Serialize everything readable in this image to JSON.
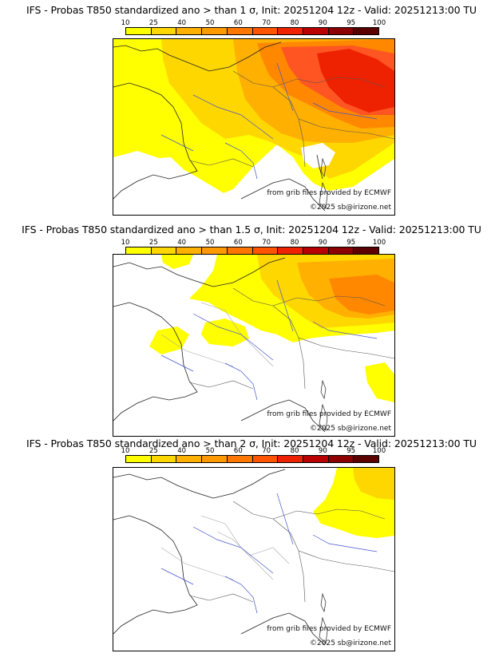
{
  "panels": [
    {
      "title": "IFS - Probas T850  standardized ano > than 1 σ, Init: 20251204 12z - Valid: 20251213:00 TU",
      "source": "from grib files provided by ECMWF",
      "copyright": "©2025 sb@irizone.net"
    },
    {
      "title": "IFS - Probas T850  standardized ano > than 1.5 σ, Init: 20251204 12z - Valid: 20251213:00 TU",
      "source": "from grib files provided by ECMWF",
      "copyright": "©2025 sb@irizone.net"
    },
    {
      "title": "IFS - Probas T850  standardized ano > than 2 σ, Init: 20251204 12z - Valid: 20251213:00 TU",
      "source": "from grib files provided by ECMWF",
      "copyright": "©2025 sb@irizone.net"
    }
  ],
  "legend": {
    "ticks": [
      "10",
      "25",
      "40",
      "50",
      "60",
      "70",
      "80",
      "90",
      "95",
      "100"
    ],
    "colors": [
      "#ffff00",
      "#ffd700",
      "#ffb000",
      "#ff9900",
      "#ff7700",
      "#ff5500",
      "#ee2200",
      "#b80000",
      "#8b0000",
      "#5a0000"
    ]
  }
}
